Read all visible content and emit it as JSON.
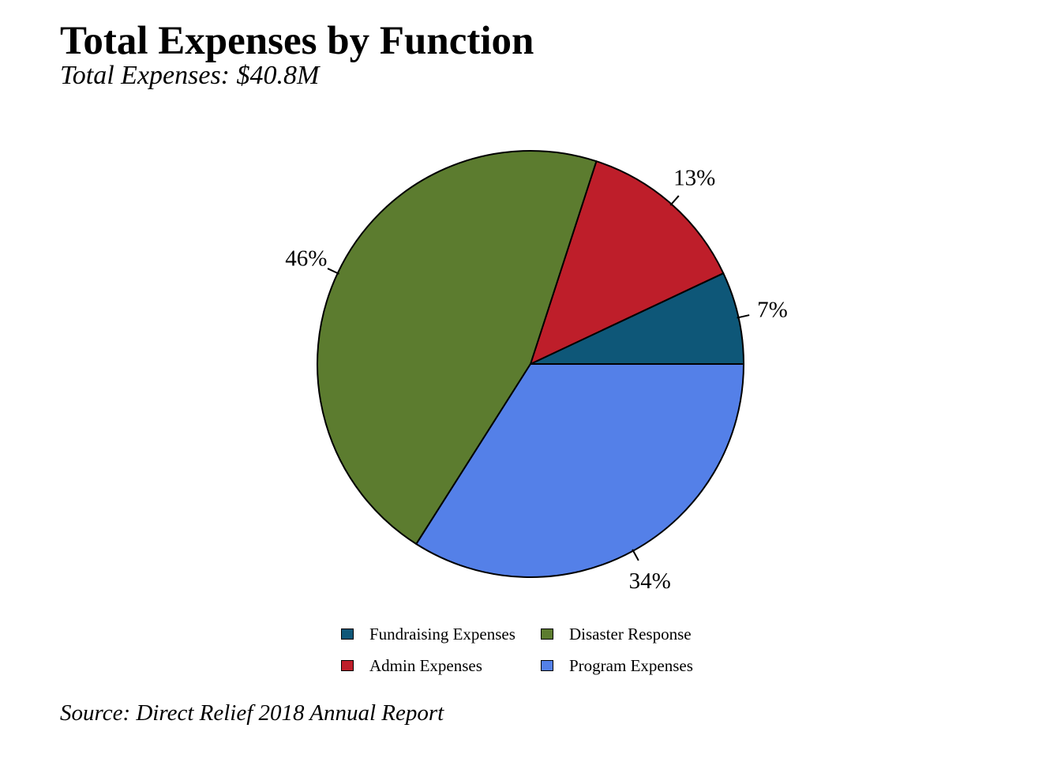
{
  "chart_data": {
    "type": "pie",
    "title": "Total Expenses by Function",
    "subtitle": "Total Expenses: $40.8M",
    "caption": "Source: Direct Relief 2018 Annual Report",
    "start_angle_deg": 0,
    "direction": "counterclockwise",
    "legend_position": "bottom",
    "slices": [
      {
        "label": "Fundraising Expenses",
        "value": 7,
        "display": "7%",
        "color": "#0e5778"
      },
      {
        "label": "Admin Expenses",
        "value": 13,
        "display": "13%",
        "color": "#be1e2a"
      },
      {
        "label": "Disaster Response",
        "value": 46,
        "display": "46%",
        "color": "#5c7c2f"
      },
      {
        "label": "Program Expenses",
        "value": 34,
        "display": "34%",
        "color": "#5480e8"
      }
    ],
    "legend": [
      {
        "label": "Fundraising Expenses",
        "color": "#0e5778"
      },
      {
        "label": "Disaster Response",
        "color": "#5c7c2f"
      },
      {
        "label": "Admin Expenses",
        "color": "#be1e2a"
      },
      {
        "label": "Program Expenses",
        "color": "#5480e8"
      }
    ]
  }
}
